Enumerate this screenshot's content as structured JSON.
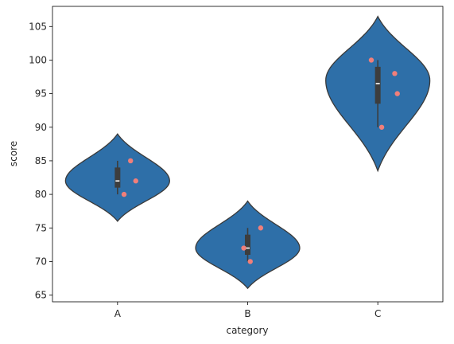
{
  "chart_data": {
    "type": "violin",
    "title": "",
    "xlabel": "category",
    "ylabel": "score",
    "ylim": [
      64,
      108
    ],
    "yticks": [
      65,
      70,
      75,
      80,
      85,
      90,
      95,
      100,
      105
    ],
    "categories": [
      "A",
      "B",
      "C"
    ],
    "violin_color": "#2e6fa8",
    "point_color": "#f07f7a",
    "grid": false,
    "violins": [
      {
        "category": "A",
        "min": 80,
        "q1": 81,
        "median": 82,
        "q3": 84,
        "max": 85,
        "density_range": [
          76,
          89
        ],
        "peak": 82,
        "points": [
          {
            "y": 85,
            "jitter": 0.1
          },
          {
            "y": 82,
            "jitter": 0.14
          },
          {
            "y": 80,
            "jitter": 0.05
          }
        ]
      },
      {
        "category": "B",
        "min": 70,
        "q1": 71,
        "median": 72,
        "q3": 74,
        "max": 75,
        "density_range": [
          66,
          79
        ],
        "peak": 72,
        "points": [
          {
            "y": 75,
            "jitter": 0.1
          },
          {
            "y": 72,
            "jitter": -0.03
          },
          {
            "y": 70,
            "jitter": 0.02
          }
        ]
      },
      {
        "category": "C",
        "min": 90,
        "q1": 93.5,
        "median": 96.5,
        "q3": 99,
        "max": 100,
        "density_range": [
          83.5,
          106.5
        ],
        "peak": 97,
        "points": [
          {
            "y": 100,
            "jitter": -0.05
          },
          {
            "y": 98,
            "jitter": 0.13
          },
          {
            "y": 95,
            "jitter": 0.15
          },
          {
            "y": 90,
            "jitter": 0.03
          }
        ]
      }
    ]
  }
}
